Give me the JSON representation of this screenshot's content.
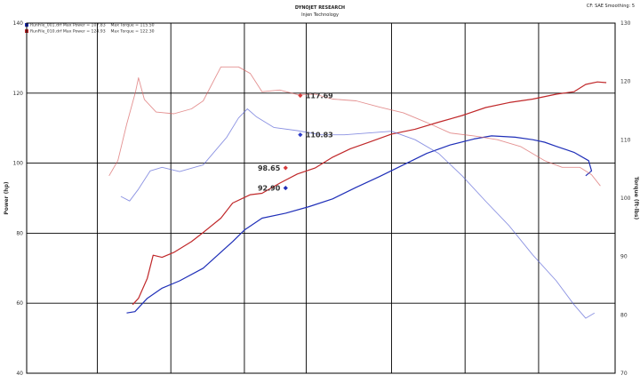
{
  "header": {
    "title": "DYNOJET RESEARCH",
    "subtitle": "Injen Technology",
    "settings": "CF: SAE  Smoothing: 5"
  },
  "legend": [
    {
      "file": "RunFile_001.drf",
      "power_label": "Max Power = 107.83",
      "torque_label": "Max Torque = 115.50",
      "color": "#1f2fb8"
    },
    {
      "file": "RunFile_010.drf",
      "power_label": "Max Power = 124.93",
      "torque_label": "Max Torque = 122.30",
      "color": "#c0282a"
    }
  ],
  "chart_data": {
    "type": "line",
    "xlim": [
      0,
      1
    ],
    "left_axis": {
      "label": "Power (hp)",
      "ylim": [
        40,
        140
      ],
      "ticks": [
        40,
        60,
        80,
        100,
        120,
        140
      ]
    },
    "right_axis": {
      "label": "Torque (ft-lbs)",
      "ylim": [
        70,
        130
      ],
      "ticks": [
        70,
        80,
        90,
        100,
        110,
        120,
        130
      ]
    },
    "series": [
      {
        "name": "RunFile_001.drf Power",
        "axis": "left",
        "color": "#1f2fb8",
        "width": 1.2,
        "opacity": 1,
        "points": [
          [
            0.17,
            57.2
          ],
          [
            0.184,
            57.6
          ],
          [
            0.205,
            61.4
          ],
          [
            0.23,
            64.3
          ],
          [
            0.26,
            66.4
          ],
          [
            0.3,
            70.0
          ],
          [
            0.35,
            77.6
          ],
          [
            0.37,
            80.9
          ],
          [
            0.4,
            84.3
          ],
          [
            0.44,
            85.7
          ],
          [
            0.48,
            87.6
          ],
          [
            0.52,
            89.8
          ],
          [
            0.56,
            93.1
          ],
          [
            0.6,
            96.2
          ],
          [
            0.64,
            99.5
          ],
          [
            0.68,
            102.8
          ],
          [
            0.72,
            105.2
          ],
          [
            0.76,
            106.9
          ],
          [
            0.79,
            107.8
          ],
          [
            0.83,
            107.4
          ],
          [
            0.86,
            106.7
          ],
          [
            0.88,
            106.0
          ],
          [
            0.9,
            104.8
          ],
          [
            0.93,
            103.1
          ],
          [
            0.955,
            100.7
          ],
          [
            0.96,
            97.8
          ],
          [
            0.95,
            96.4
          ]
        ]
      },
      {
        "name": "RunFile_010.drf Power",
        "axis": "left",
        "color": "#c0282a",
        "width": 1.2,
        "opacity": 1,
        "points": [
          [
            0.18,
            59.6
          ],
          [
            0.19,
            61.4
          ],
          [
            0.205,
            67.1
          ],
          [
            0.215,
            73.7
          ],
          [
            0.23,
            73.1
          ],
          [
            0.25,
            74.5
          ],
          [
            0.28,
            77.6
          ],
          [
            0.3,
            80.2
          ],
          [
            0.33,
            84.3
          ],
          [
            0.35,
            88.6
          ],
          [
            0.38,
            91.0
          ],
          [
            0.4,
            91.4
          ],
          [
            0.43,
            94.3
          ],
          [
            0.46,
            96.9
          ],
          [
            0.49,
            98.6
          ],
          [
            0.52,
            101.7
          ],
          [
            0.55,
            104.1
          ],
          [
            0.58,
            105.9
          ],
          [
            0.62,
            108.3
          ],
          [
            0.66,
            109.7
          ],
          [
            0.7,
            111.7
          ],
          [
            0.74,
            113.6
          ],
          [
            0.78,
            115.9
          ],
          [
            0.82,
            117.3
          ],
          [
            0.86,
            118.3
          ],
          [
            0.9,
            119.7
          ],
          [
            0.93,
            120.4
          ],
          [
            0.95,
            122.5
          ],
          [
            0.97,
            123.2
          ],
          [
            0.985,
            123.0
          ]
        ]
      },
      {
        "name": "RunFile_001.drf Torque",
        "axis": "left",
        "color": "#5a64d6",
        "width": 0.9,
        "opacity": 0.7,
        "points": [
          [
            0.16,
            90.5
          ],
          [
            0.175,
            89.2
          ],
          [
            0.19,
            92.6
          ],
          [
            0.21,
            97.8
          ],
          [
            0.23,
            98.8
          ],
          [
            0.26,
            97.6
          ],
          [
            0.3,
            99.5
          ],
          [
            0.34,
            107.4
          ],
          [
            0.36,
            112.9
          ],
          [
            0.375,
            115.5
          ],
          [
            0.39,
            113.3
          ],
          [
            0.42,
            110.2
          ],
          [
            0.46,
            109.3
          ],
          [
            0.5,
            108.1
          ],
          [
            0.54,
            108.1
          ],
          [
            0.58,
            108.6
          ],
          [
            0.62,
            109.1
          ],
          [
            0.66,
            106.7
          ],
          [
            0.7,
            102.8
          ],
          [
            0.74,
            96.4
          ],
          [
            0.78,
            89.1
          ],
          [
            0.82,
            82.1
          ],
          [
            0.86,
            73.8
          ],
          [
            0.9,
            66.4
          ],
          [
            0.93,
            59.6
          ],
          [
            0.95,
            55.7
          ],
          [
            0.965,
            57.2
          ]
        ]
      },
      {
        "name": "RunFile_010.drf Torque",
        "axis": "left",
        "color": "#d86262",
        "width": 0.9,
        "opacity": 0.7,
        "points": [
          [
            0.14,
            96.4
          ],
          [
            0.155,
            100.7
          ],
          [
            0.17,
            111.1
          ],
          [
            0.185,
            120.4
          ],
          [
            0.19,
            124.4
          ],
          [
            0.2,
            118.2
          ],
          [
            0.22,
            114.6
          ],
          [
            0.25,
            114.1
          ],
          [
            0.28,
            115.5
          ],
          [
            0.3,
            117.8
          ],
          [
            0.33,
            127.5
          ],
          [
            0.36,
            127.5
          ],
          [
            0.38,
            125.6
          ],
          [
            0.4,
            120.4
          ],
          [
            0.43,
            120.9
          ],
          [
            0.46,
            119.6
          ],
          [
            0.49,
            119.7
          ],
          [
            0.52,
            118.3
          ],
          [
            0.56,
            117.8
          ],
          [
            0.6,
            116.0
          ],
          [
            0.64,
            114.4
          ],
          [
            0.68,
            111.6
          ],
          [
            0.72,
            108.6
          ],
          [
            0.76,
            107.8
          ],
          [
            0.8,
            106.7
          ],
          [
            0.84,
            104.7
          ],
          [
            0.88,
            100.7
          ],
          [
            0.91,
            98.8
          ],
          [
            0.94,
            98.8
          ],
          [
            0.96,
            96.7
          ],
          [
            0.975,
            93.5
          ]
        ]
      }
    ],
    "markers": [
      {
        "label": "117.69",
        "x": 0.465,
        "y": 119.3,
        "color": "#d83a3a",
        "side": "right"
      },
      {
        "label": "110.83",
        "x": 0.465,
        "y": 108.1,
        "color": "#2f3cc8",
        "side": "right"
      },
      {
        "label": "98.65",
        "x": 0.44,
        "y": 98.65,
        "color": "#d83a3a",
        "side": "left"
      },
      {
        "label": "92.90",
        "x": 0.44,
        "y": 92.9,
        "color": "#1f2fb8",
        "side": "left"
      }
    ]
  }
}
